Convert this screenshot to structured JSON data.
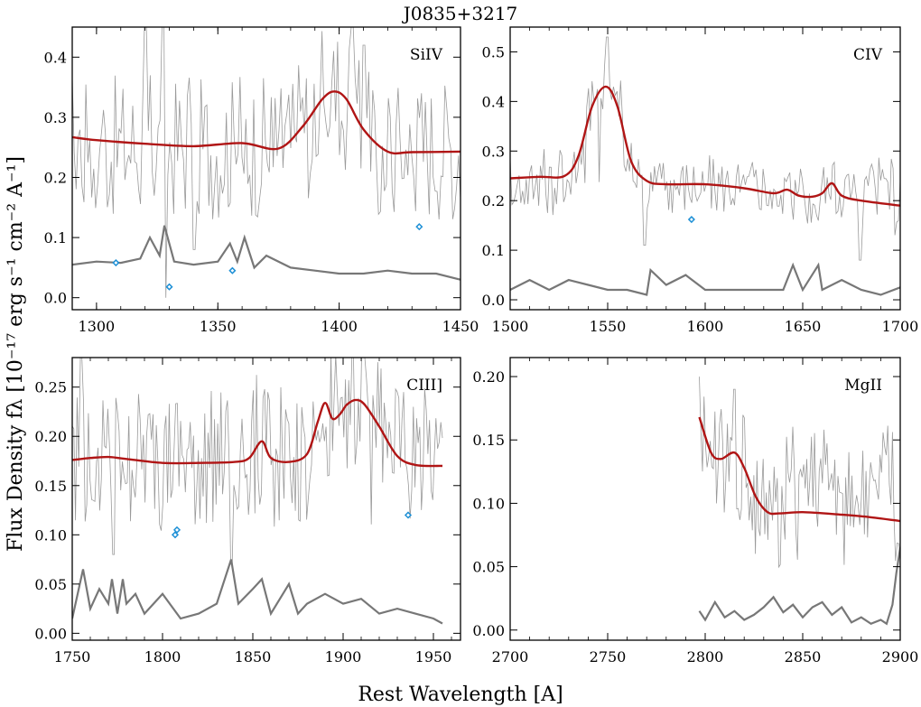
{
  "figure": {
    "title": "J0835+3217",
    "xlabel": "Rest Wavelength [A]",
    "ylabel": "Flux Density fλ [10⁻¹⁷ erg s⁻¹ cm⁻² A⁻¹]"
  },
  "colors": {
    "spectrum": "#9a9a9a",
    "model": "#b01515",
    "error": "#777777",
    "marker": "#1e90d6",
    "axis": "#000000"
  },
  "chart_data": [
    {
      "type": "line",
      "label": "SiIV",
      "xlim": [
        1290,
        1450
      ],
      "ylim": [
        -0.02,
        0.45
      ],
      "xticks": [
        1300,
        1350,
        1400,
        1450
      ],
      "yticks": [
        0.0,
        0.1,
        0.2,
        0.3,
        0.4
      ],
      "ytick_labels": [
        "0.0",
        "0.1",
        "0.2",
        "0.3",
        "0.4"
      ],
      "model": {
        "x": [
          1290,
          1300,
          1320,
          1340,
          1360,
          1375,
          1385,
          1393,
          1398,
          1403,
          1410,
          1420,
          1430,
          1450
        ],
        "y": [
          0.267,
          0.262,
          0.256,
          0.252,
          0.257,
          0.248,
          0.285,
          0.33,
          0.343,
          0.33,
          0.28,
          0.243,
          0.242,
          0.243
        ]
      },
      "error": {
        "x": [
          1290,
          1300,
          1310,
          1318,
          1322,
          1326,
          1328,
          1332,
          1340,
          1350,
          1355,
          1358,
          1361,
          1365,
          1370,
          1380,
          1390,
          1400,
          1410,
          1420,
          1430,
          1440,
          1450
        ],
        "y": [
          0.055,
          0.06,
          0.058,
          0.065,
          0.1,
          0.07,
          0.12,
          0.06,
          0.055,
          0.06,
          0.09,
          0.06,
          0.1,
          0.05,
          0.07,
          0.05,
          0.045,
          0.04,
          0.04,
          0.045,
          0.04,
          0.04,
          0.03
        ]
      },
      "markers": {
        "x": [
          1308,
          1330,
          1356,
          1433
        ],
        "y": [
          0.058,
          0.018,
          0.045,
          0.118
        ]
      },
      "spectrum": {
        "x0": 1290,
        "x1": 1450,
        "n": 200,
        "base": 0.25,
        "noise": 0.12,
        "spikes": [
          [
            1328,
            0.0
          ],
          [
            1320,
            0.45
          ],
          [
            1405,
            0.45
          ],
          [
            1327,
            0.45
          ],
          [
            1340,
            0.08
          ],
          [
            1410,
            0.42
          ]
        ]
      }
    },
    {
      "type": "line",
      "label": "CIV",
      "xlim": [
        1500,
        1700
      ],
      "ylim": [
        -0.02,
        0.55
      ],
      "xticks": [
        1500,
        1550,
        1600,
        1650,
        1700
      ],
      "yticks": [
        0.0,
        0.1,
        0.2,
        0.3,
        0.4,
        0.5
      ],
      "ytick_labels": [
        "0.0",
        "0.1",
        "0.2",
        "0.3",
        "0.4",
        "0.5"
      ],
      "model": {
        "x": [
          1500,
          1515,
          1528,
          1535,
          1542,
          1549,
          1555,
          1562,
          1570,
          1580,
          1600,
          1620,
          1635,
          1642,
          1648,
          1655,
          1660,
          1665,
          1670,
          1680,
          1700
        ],
        "y": [
          0.245,
          0.248,
          0.25,
          0.29,
          0.39,
          0.43,
          0.39,
          0.28,
          0.24,
          0.233,
          0.233,
          0.225,
          0.215,
          0.222,
          0.21,
          0.208,
          0.215,
          0.235,
          0.21,
          0.2,
          0.19
        ]
      },
      "error": {
        "x": [
          1500,
          1510,
          1520,
          1530,
          1540,
          1550,
          1560,
          1570,
          1572,
          1580,
          1590,
          1600,
          1620,
          1640,
          1645,
          1650,
          1658,
          1660,
          1670,
          1680,
          1690,
          1700
        ],
        "y": [
          0.02,
          0.04,
          0.02,
          0.04,
          0.03,
          0.02,
          0.02,
          0.01,
          0.06,
          0.03,
          0.05,
          0.02,
          0.02,
          0.02,
          0.07,
          0.02,
          0.07,
          0.02,
          0.04,
          0.02,
          0.01,
          0.025
        ]
      },
      "markers": {
        "x": [
          1593
        ],
        "y": [
          0.162
        ]
      },
      "spectrum": {
        "x0": 1500,
        "x1": 1700,
        "n": 220,
        "base": 0.23,
        "noise": 0.06,
        "spikes": [
          [
            1569,
            0.11
          ],
          [
            1679,
            0.08
          ],
          [
            1550,
            0.53
          ]
        ]
      }
    },
    {
      "type": "line",
      "label": "CIII]",
      "xlim": [
        1750,
        1965
      ],
      "ylim": [
        -0.007,
        0.28
      ],
      "xticks": [
        1750,
        1800,
        1850,
        1900,
        1950
      ],
      "yticks": [
        0.0,
        0.05,
        0.1,
        0.15,
        0.2,
        0.25
      ],
      "ytick_labels": [
        "0.00",
        "0.05",
        "0.10",
        "0.15",
        "0.20",
        "0.25"
      ],
      "model": {
        "x": [
          1750,
          1760,
          1770,
          1780,
          1800,
          1820,
          1840,
          1848,
          1855,
          1860,
          1870,
          1880,
          1886,
          1890,
          1894,
          1898,
          1902,
          1907,
          1912,
          1920,
          1930,
          1940,
          1955
        ],
        "y": [
          0.176,
          0.178,
          0.179,
          0.177,
          0.173,
          0.173,
          0.174,
          0.178,
          0.195,
          0.178,
          0.174,
          0.182,
          0.215,
          0.234,
          0.218,
          0.222,
          0.232,
          0.237,
          0.232,
          0.21,
          0.18,
          0.171,
          0.17
        ]
      },
      "error": {
        "x": [
          1750,
          1756,
          1760,
          1765,
          1770,
          1772,
          1775,
          1778,
          1780,
          1785,
          1790,
          1800,
          1810,
          1820,
          1830,
          1838,
          1842,
          1850,
          1855,
          1860,
          1870,
          1875,
          1880,
          1890,
          1900,
          1910,
          1920,
          1930,
          1940,
          1950,
          1955
        ],
        "y": [
          0.015,
          0.065,
          0.025,
          0.045,
          0.03,
          0.055,
          0.02,
          0.055,
          0.03,
          0.04,
          0.02,
          0.04,
          0.015,
          0.02,
          0.03,
          0.075,
          0.03,
          0.045,
          0.055,
          0.02,
          0.05,
          0.02,
          0.03,
          0.04,
          0.03,
          0.035,
          0.02,
          0.025,
          0.02,
          0.015,
          0.01
        ]
      },
      "markers": {
        "x": [
          1807,
          1808,
          1936
        ],
        "y": [
          0.1,
          0.105,
          0.12
        ]
      },
      "spectrum": {
        "x0": 1750,
        "x1": 1955,
        "n": 230,
        "base": 0.18,
        "noise": 0.07,
        "spikes": [
          [
            1773,
            0.08
          ],
          [
            1838,
            0.07
          ],
          [
            1905,
            0.28
          ],
          [
            1755,
            0.28
          ]
        ]
      }
    },
    {
      "type": "line",
      "label": "MgII",
      "xlim": [
        2700,
        2900
      ],
      "ylim": [
        -0.008,
        0.215
      ],
      "xticks": [
        2700,
        2750,
        2800,
        2850,
        2900
      ],
      "yticks": [
        0.0,
        0.05,
        0.1,
        0.15,
        0.2
      ],
      "ytick_labels": [
        "0.00",
        "0.05",
        "0.10",
        "0.15",
        "0.20"
      ],
      "model": {
        "x": [
          2797,
          2803,
          2808,
          2815,
          2820,
          2826,
          2832,
          2838,
          2850,
          2870,
          2885,
          2900
        ],
        "y": [
          0.168,
          0.14,
          0.135,
          0.14,
          0.128,
          0.105,
          0.093,
          0.092,
          0.093,
          0.091,
          0.089,
          0.086
        ]
      },
      "error": {
        "x": [
          2797,
          2800,
          2805,
          2810,
          2815,
          2820,
          2825,
          2830,
          2835,
          2840,
          2845,
          2850,
          2855,
          2860,
          2865,
          2870,
          2875,
          2880,
          2885,
          2890,
          2893,
          2896,
          2898,
          2900
        ],
        "y": [
          0.015,
          0.008,
          0.022,
          0.01,
          0.015,
          0.008,
          0.012,
          0.018,
          0.026,
          0.014,
          0.02,
          0.01,
          0.018,
          0.022,
          0.012,
          0.018,
          0.006,
          0.01,
          0.005,
          0.008,
          0.005,
          0.02,
          0.045,
          0.065
        ]
      },
      "markers": {
        "x": [],
        "y": []
      },
      "spectrum": {
        "x0": 2797,
        "x1": 2900,
        "n": 130,
        "base": 0.12,
        "noise": 0.045,
        "spikes": [
          [
            2797,
            0.2
          ],
          [
            2815,
            0.19
          ]
        ]
      }
    }
  ]
}
